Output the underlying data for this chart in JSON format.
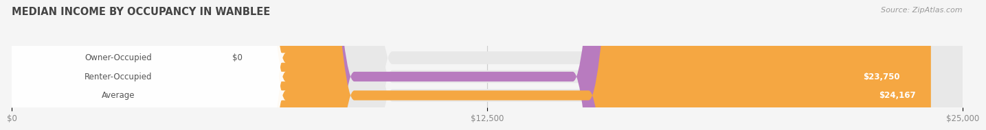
{
  "title": "MEDIAN INCOME BY OCCUPANCY IN WANBLEE",
  "source": "Source: ZipAtlas.com",
  "categories": [
    "Owner-Occupied",
    "Renter-Occupied",
    "Average"
  ],
  "values": [
    0,
    23750,
    24167
  ],
  "bar_colors": [
    "#6dcdd4",
    "#b87bbf",
    "#f5a742"
  ],
  "bar_labels": [
    "$0",
    "$23,750",
    "$24,167"
  ],
  "x_max": 25000,
  "x_ticks": [
    0,
    12500,
    25000
  ],
  "x_tick_labels": [
    "$0",
    "$12,500",
    "$25,000"
  ],
  "bg_color": "#f5f5f5",
  "bar_bg_color": "#e8e8e8",
  "label_bg_color": "#ffffff",
  "title_color": "#444444",
  "source_color": "#999999",
  "tick_color": "#888888"
}
